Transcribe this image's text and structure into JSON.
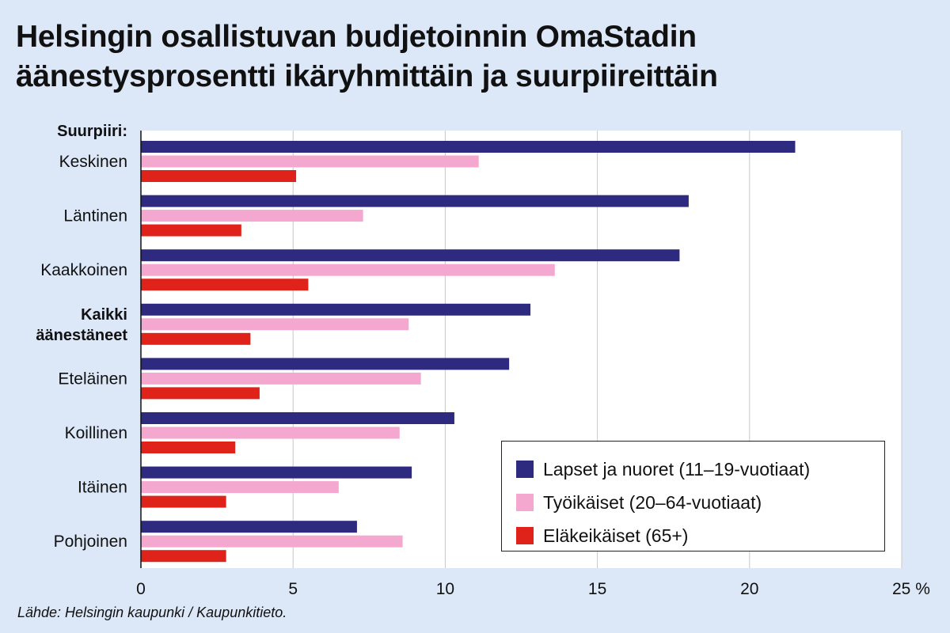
{
  "title_lines": [
    "Helsingin osallistuvan budjetoinnin OmaStadin",
    "äänestysprosentti ikäryhmittäin ja suurpiireittäin"
  ],
  "source": "Lähde: Helsingin kaupunki / Kaupunkitieto.",
  "colors": {
    "background": "#dce7f7",
    "plot": "#ffffff",
    "series": [
      "#2e2a80",
      "#f4a8cf",
      "#e0231a"
    ]
  },
  "chart_data": {
    "type": "bar",
    "orientation": "horizontal",
    "category_header": "Suurpiiri:",
    "categories": [
      "Keskinen",
      "Läntinen",
      "Kaakkoinen",
      "Kaikki äänestäneet",
      "Eteläinen",
      "Koillinen",
      "Itäinen",
      "Pohjoinen"
    ],
    "bold_categories": [
      "Kaikki äänestäneet"
    ],
    "series": [
      {
        "name": "Lapset ja nuoret (11–19-vuotiaat)",
        "values": [
          21.5,
          18.0,
          17.7,
          12.8,
          12.1,
          10.3,
          8.9,
          7.1
        ]
      },
      {
        "name": "Työikäiset (20–64-vuotiaat)",
        "values": [
          11.1,
          7.3,
          13.6,
          8.8,
          9.2,
          8.5,
          6.5,
          8.6
        ]
      },
      {
        "name": "Eläkeikäiset (65+)",
        "values": [
          5.1,
          3.3,
          5.5,
          3.6,
          3.9,
          3.1,
          2.8,
          2.8
        ]
      }
    ],
    "xlim": [
      0,
      25
    ],
    "xticks": [
      0,
      5,
      10,
      15,
      20,
      25
    ],
    "xtick_labels": [
      "0",
      "5",
      "10",
      "15",
      "20",
      "25 %"
    ],
    "grid": "vertical",
    "legend_position": "bottom-right"
  }
}
